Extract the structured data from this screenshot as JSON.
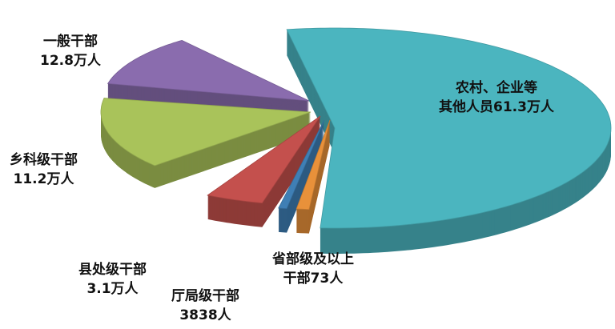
{
  "chart_data": {
    "type": "pie",
    "style": "3d-exploded",
    "slices": [
      {
        "name": "农村、企业等其他人员",
        "value_label": "61.3万人",
        "value": 613000,
        "color": "#4bb5bf"
      },
      {
        "name": "省部级及以上干部",
        "value_label": "73人",
        "value": 73,
        "color": "#e8913a"
      },
      {
        "name": "厅局级干部",
        "value_label": "3838人",
        "value": 3838,
        "color": "#3f7fb5"
      },
      {
        "name": "县处级干部",
        "value_label": "3.1万人",
        "value": 31000,
        "color": "#c4504d"
      },
      {
        "name": "乡科级干部",
        "value_label": "11.2万人",
        "value": 112000,
        "color": "#a9c35a"
      },
      {
        "name": "一般干部",
        "value_label": "12.8万人",
        "value": 128000,
        "color": "#8a6cae"
      }
    ],
    "labels": {
      "rural_line1": "农村、企业等",
      "rural_line2": "其他人员61.3万人",
      "general_line1": "一般干部",
      "general_line2": "12.8万人",
      "township_line1": "乡科级干部",
      "township_line2": "11.2万人",
      "county_line1": "县处级干部",
      "county_line2": "3.1万人",
      "bureau_line1": "厅局级干部",
      "bureau_line2": "3838人",
      "ministerial_line1": "省部级及以上",
      "ministerial_line2": "干部73人"
    }
  }
}
